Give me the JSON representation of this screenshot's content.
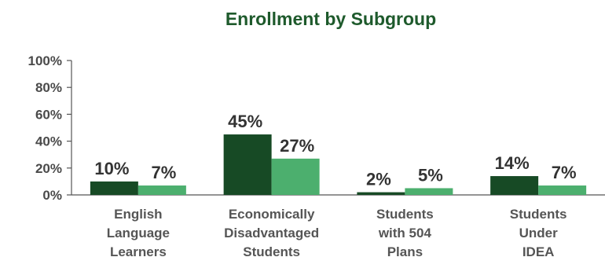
{
  "chart_data": {
    "type": "bar",
    "title": "Enrollment by Subgroup",
    "categories": [
      [
        "English",
        "Language",
        "Learners"
      ],
      [
        "Economically",
        "Disadvantaged",
        "Students"
      ],
      [
        "Students",
        "with 504",
        "Plans"
      ],
      [
        "Students",
        "Under",
        "IDEA"
      ]
    ],
    "series": [
      {
        "values": [
          10,
          45,
          2,
          14
        ],
        "labels": [
          "10%",
          "45%",
          "2%",
          "14%"
        ],
        "color": "#174a25"
      },
      {
        "values": [
          7,
          27,
          5,
          7
        ],
        "labels": [
          "7%",
          "27%",
          "5%",
          "7%"
        ],
        "color": "#4caf6e"
      }
    ],
    "yticks": [
      "0%",
      "20%",
      "40%",
      "60%",
      "80%",
      "100%"
    ],
    "ylim": [
      0,
      100
    ],
    "grid": false,
    "legend": "none",
    "title_color": "#1e5a2c"
  }
}
